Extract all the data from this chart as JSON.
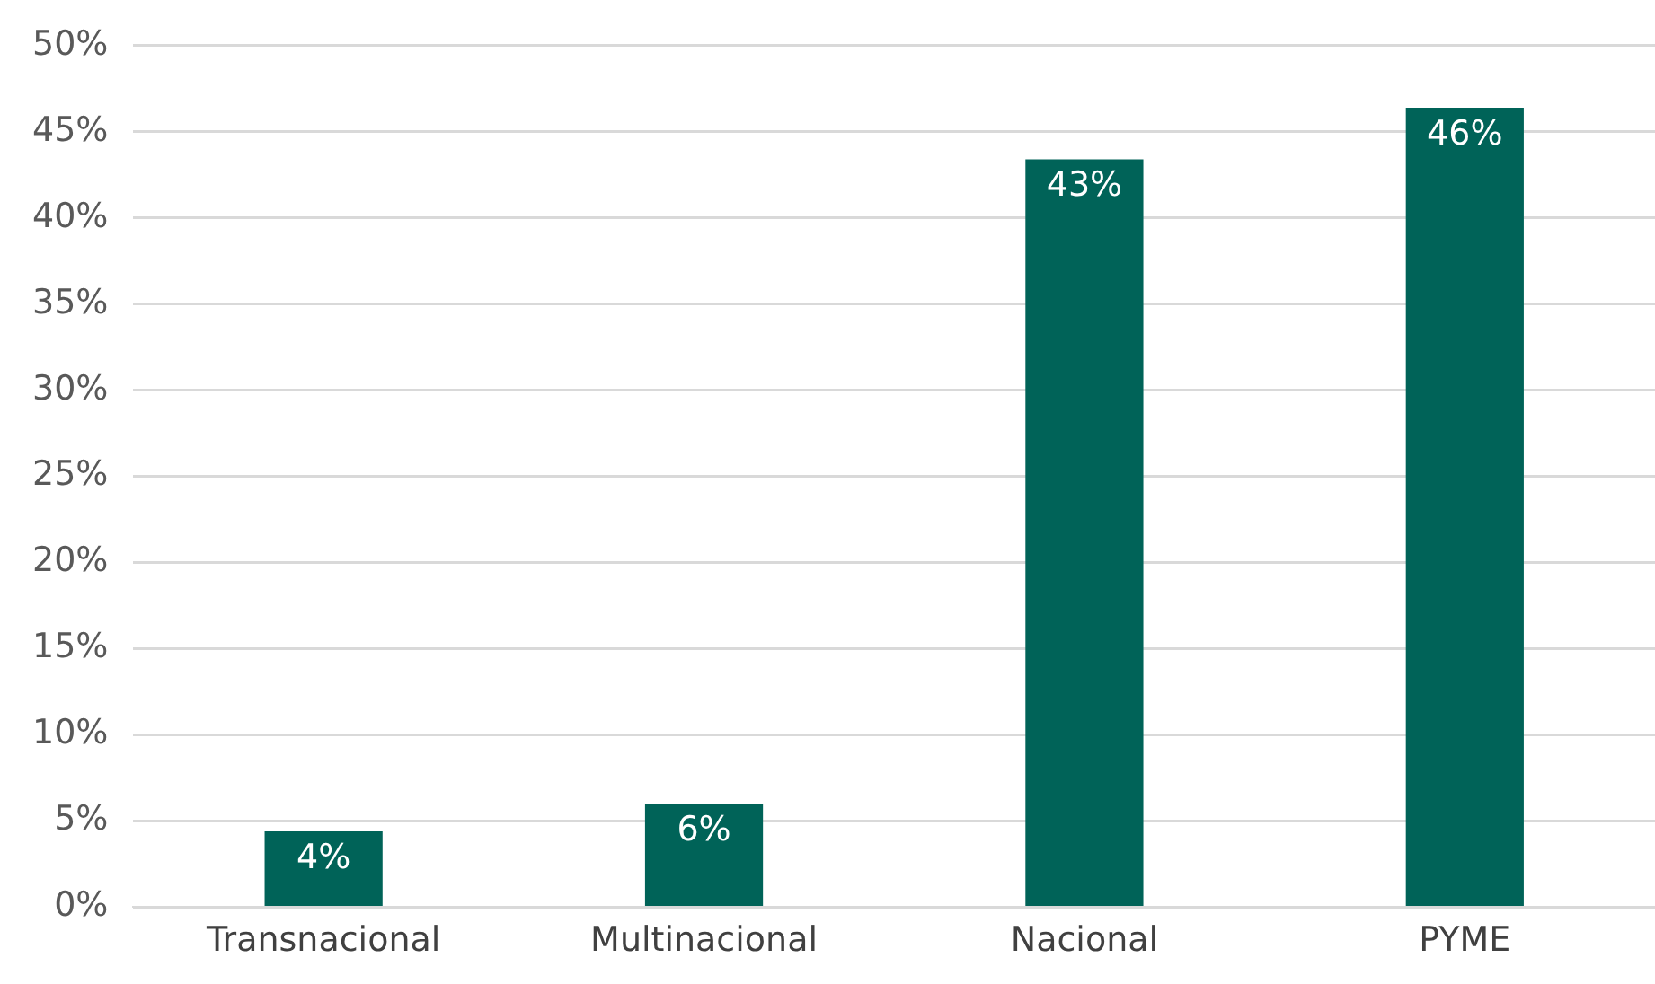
{
  "chart_data": {
    "type": "bar",
    "categories": [
      "Transnacional",
      "Multinacional",
      "Nacional",
      "PYME"
    ],
    "values": [
      4.4,
      6,
      43.4,
      46.4
    ],
    "color": "#006358",
    "value_labels": [
      "4%",
      "6%",
      "43%",
      "46%"
    ],
    "ylim": [
      0,
      50
    ],
    "yticks": [
      {
        "value": 0,
        "label": "0%"
      },
      {
        "value": 5,
        "label": "5%"
      },
      {
        "value": 10,
        "label": "10%"
      },
      {
        "value": 15,
        "label": "15%"
      },
      {
        "value": 20,
        "label": "20%"
      },
      {
        "value": 25,
        "label": "25%"
      },
      {
        "value": 30,
        "label": "30%"
      },
      {
        "value": 35,
        "label": "35%"
      },
      {
        "value": 40,
        "label": "40%"
      },
      {
        "value": 45,
        "label": "45%"
      },
      {
        "value": 50,
        "label": "50%"
      }
    ],
    "grid": "y",
    "legend": false
  }
}
